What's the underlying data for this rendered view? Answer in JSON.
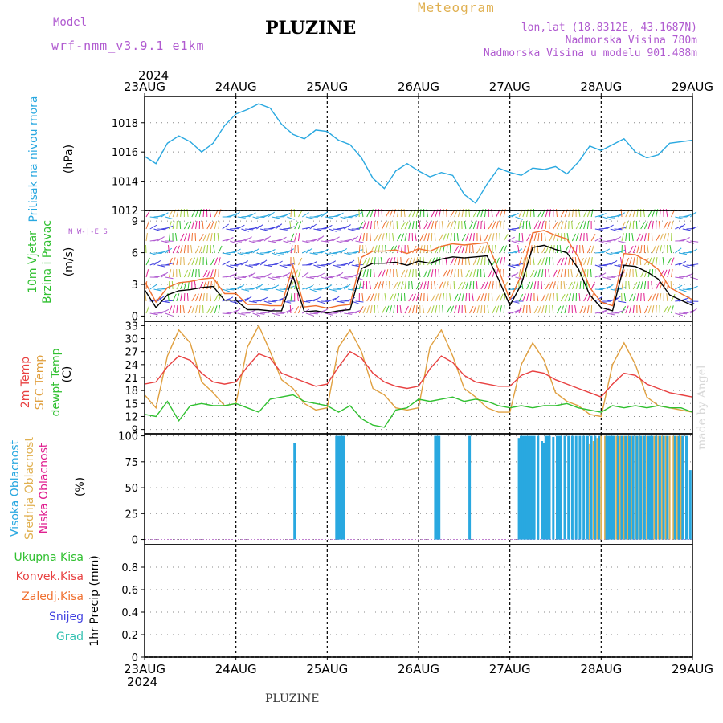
{
  "header": {
    "model_label": "Model",
    "model_name": "wrf-nmm_v3.9.1  e1km",
    "title": "PLUZINE",
    "meteogram": "Meteogram",
    "lonlat": "lon,lat (18.8312E, 43.1687N)",
    "altitude": "Nadmorska Visina 780m",
    "model_altitude": "Nadmorska Visina u modelu 901.488m"
  },
  "footer": {
    "name": "PLUZINE",
    "made_by": "made by Angel"
  },
  "time_axis": {
    "year": "2024",
    "labels": [
      "23AUG",
      "24AUG",
      "25AUG",
      "26AUG",
      "27AUG",
      "28AUG",
      "29AUG"
    ]
  },
  "panels": {
    "pressure": {
      "ylabel": "Pritisak na nivou mora",
      "unit": "(hPa)"
    },
    "wind": {
      "ylabel1": "10m Vjetar",
      "ylabel2": "Brzina i Pravac",
      "unit": "(m/s)",
      "compass": "N W-|-E S"
    },
    "temp": {
      "ylabel1": "2m Temp",
      "ylabel2": "SFC Temp",
      "ylabel3": "dewpt Temp",
      "unit": "(C)"
    },
    "cloud": {
      "ylabel1": "Visoka Oblacnost",
      "ylabel2": "Srednja Oblacnost",
      "ylabel3": "Niska Oblacnost",
      "unit": "(%)"
    },
    "precip": {
      "legend": [
        "Ukupna Kisa",
        "Konvek.Kisa",
        "Zaledj.Kisa",
        "Snijeg",
        "Grad"
      ],
      "unit": "1hr Precip (mm)"
    }
  },
  "colors": {
    "pressure": "#29a8e0",
    "t2m": "#e84040",
    "tsfc": "#e0a040",
    "dewpt": "#30c030",
    "high_cloud": "#29a8e0",
    "mid_cloud": "#e0b050",
    "low_cloud": "#e02090",
    "ukupna": "#30c030",
    "konvek": "#e84040",
    "zaledj": "#f07030",
    "snijeg": "#4040e0",
    "grad": "#30c0b0",
    "purple": "#b05ad0"
  },
  "chart_data": [
    {
      "type": "line",
      "name": "pressure",
      "x_hours": [
        0,
        3,
        6,
        9,
        12,
        15,
        18,
        21,
        24,
        27,
        30,
        33,
        36,
        39,
        42,
        45,
        48,
        51,
        54,
        57,
        60,
        63,
        66,
        69,
        72,
        75,
        78,
        81,
        84,
        87,
        90,
        93,
        96,
        99,
        102,
        105,
        108,
        111,
        114,
        117,
        120,
        123,
        126,
        129,
        132,
        135,
        138,
        141,
        144
      ],
      "values": [
        1015.7,
        1015.2,
        1016.6,
        1017.1,
        1016.7,
        1016.0,
        1016.6,
        1017.8,
        1018.6,
        1018.9,
        1019.3,
        1019.0,
        1017.9,
        1017.2,
        1016.9,
        1017.5,
        1017.4,
        1016.8,
        1016.5,
        1015.6,
        1014.2,
        1013.5,
        1014.7,
        1015.2,
        1014.7,
        1014.3,
        1014.6,
        1014.4,
        1013.1,
        1012.5,
        1013.8,
        1014.9,
        1014.6,
        1014.4,
        1014.9,
        1014.8,
        1015.0,
        1014.5,
        1015.3,
        1016.4,
        1016.1,
        1016.5,
        1016.9,
        1016.0,
        1015.6,
        1015.8,
        1016.6,
        1016.7,
        1016.8
      ],
      "yticks": [
        1012,
        1014,
        1016,
        1018
      ],
      "ylim": [
        1012,
        1019.8
      ]
    },
    {
      "type": "line",
      "name": "wind_speed",
      "x_hours": [
        0,
        3,
        6,
        9,
        12,
        15,
        18,
        21,
        24,
        27,
        30,
        33,
        36,
        39,
        42,
        45,
        48,
        51,
        54,
        57,
        60,
        63,
        66,
        69,
        72,
        75,
        78,
        81,
        84,
        87,
        90,
        93,
        96,
        99,
        102,
        105,
        108,
        111,
        114,
        117,
        120,
        123,
        126,
        129,
        132,
        135,
        138,
        141,
        144
      ],
      "values": [
        2.5,
        0.8,
        2.0,
        2.4,
        2.5,
        2.7,
        2.8,
        1.5,
        1.5,
        0.6,
        0.6,
        0.5,
        0.5,
        3.8,
        0.4,
        0.5,
        0.3,
        0.5,
        0.6,
        4.5,
        5.0,
        5.0,
        5.1,
        4.8,
        5.2,
        5.0,
        5.4,
        5.6,
        5.5,
        5.6,
        5.7,
        3.5,
        1.0,
        3.0,
        6.5,
        6.7,
        6.3,
        6.0,
        4.5,
        2.0,
        0.8,
        0.5,
        4.8,
        4.7,
        4.2,
        3.5,
        2.0,
        1.5,
        1.0
      ],
      "yticks": [
        0,
        3,
        6,
        9
      ],
      "ylim": [
        -0.5,
        10
      ]
    },
    {
      "type": "line",
      "name": "temperature",
      "x_hours": [
        0,
        3,
        6,
        9,
        12,
        15,
        18,
        21,
        24,
        27,
        30,
        33,
        36,
        39,
        42,
        45,
        48,
        51,
        54,
        57,
        60,
        63,
        66,
        69,
        72,
        75,
        78,
        81,
        84,
        87,
        90,
        93,
        96,
        99,
        102,
        105,
        108,
        111,
        114,
        117,
        120,
        123,
        126,
        129,
        132,
        135,
        138,
        141,
        144
      ],
      "series": [
        {
          "name": "2m Temp",
          "values": [
            19.5,
            20.0,
            23.5,
            26.0,
            25.0,
            22.0,
            20.0,
            19.5,
            20.0,
            23.5,
            26.5,
            25.5,
            22.0,
            21.0,
            20.0,
            19.0,
            19.5,
            23.5,
            27.0,
            25.5,
            22.0,
            20.0,
            19.0,
            18.5,
            19.0,
            23.0,
            26.0,
            24.5,
            21.5,
            20.0,
            19.5,
            19.0,
            19.0,
            21.5,
            22.5,
            22.0,
            20.5,
            19.5,
            18.5,
            17.5,
            16.5,
            19.5,
            22.0,
            21.5,
            19.5,
            18.5,
            17.5,
            17.0,
            16.5
          ]
        },
        {
          "name": "SFC Temp",
          "values": [
            17.0,
            14.0,
            26.0,
            32.0,
            29.0,
            20.0,
            17.5,
            14.5,
            15.0,
            28.0,
            33.0,
            27.0,
            20.5,
            18.5,
            15.0,
            13.5,
            14.0,
            28.0,
            32.0,
            27.0,
            18.5,
            17.0,
            14.0,
            13.5,
            14.0,
            28.0,
            32.0,
            26.0,
            18.5,
            16.5,
            14.0,
            13.0,
            13.0,
            24.0,
            29.0,
            25.0,
            17.5,
            15.5,
            14.5,
            12.5,
            12.0,
            24.0,
            29.0,
            24.0,
            16.5,
            14.5,
            14.0,
            13.5,
            13.0
          ]
        },
        {
          "name": "dewpt Temp",
          "values": [
            12.5,
            12.0,
            15.5,
            11.0,
            14.5,
            15.0,
            14.5,
            14.5,
            15.0,
            14.0,
            13.0,
            16.0,
            16.5,
            17.0,
            15.5,
            15.0,
            14.5,
            13.0,
            14.5,
            11.5,
            10.0,
            9.5,
            13.5,
            14.0,
            16.0,
            15.5,
            16.0,
            16.5,
            15.5,
            16.0,
            15.5,
            14.5,
            14.0,
            14.5,
            14.0,
            14.5,
            14.5,
            15.0,
            14.0,
            13.5,
            13.0,
            14.5,
            14.0,
            14.5,
            14.0,
            14.5,
            14.0,
            14.0,
            13.0
          ]
        }
      ],
      "yticks": [
        9,
        12,
        15,
        18,
        21,
        24,
        27,
        30,
        33
      ],
      "ylim": [
        8,
        34
      ]
    },
    {
      "type": "bar",
      "name": "cloud_cover",
      "series": [
        {
          "name": "Visoka Oblacnost",
          "hours": [
            39,
            50,
            50.5,
            51,
            51.5,
            52,
            76,
            76.5,
            77,
            85,
            98,
            98.5,
            99,
            99.5,
            100,
            100.5,
            101,
            101.5,
            102,
            103,
            104,
            104.5,
            105,
            105.5,
            106,
            107,
            108,
            108.5,
            109,
            110,
            111,
            112,
            113,
            114,
            115,
            116,
            117,
            118,
            119,
            121,
            121.5,
            122,
            122.5,
            123,
            124,
            125,
            126,
            127,
            128,
            129,
            130,
            131,
            132,
            132.5,
            133,
            134,
            135,
            136,
            137,
            139,
            140,
            141,
            142,
            143
          ],
          "values": [
            93,
            100,
            100,
            100,
            100,
            100,
            100,
            100,
            100,
            100,
            98,
            100,
            100,
            100,
            100,
            100,
            100,
            100,
            100,
            100,
            95,
            93,
            100,
            100,
            100,
            99,
            100,
            100,
            100,
            100,
            100,
            100,
            100,
            100,
            100,
            100,
            100,
            100,
            100,
            100,
            100,
            100,
            100,
            100,
            100,
            100,
            100,
            100,
            100,
            100,
            100,
            100,
            100,
            100,
            100,
            100,
            100,
            100,
            100,
            100,
            100,
            100,
            100,
            67
          ]
        },
        {
          "name": "Srednja Oblacnost",
          "hours": [
            117,
            118,
            119,
            120,
            121,
            122,
            123,
            124,
            125,
            126,
            127,
            128,
            129,
            130,
            131,
            132,
            133,
            134,
            135,
            136,
            137,
            138,
            139,
            140,
            141
          ],
          "values": [
            92,
            95,
            98,
            100,
            100,
            100,
            100,
            100,
            100,
            100,
            100,
            100,
            100,
            100,
            100,
            100,
            100,
            100,
            100,
            100,
            100,
            100,
            100,
            100,
            100
          ]
        },
        {
          "name": "Niska Oblacnost",
          "hours": [],
          "values": []
        }
      ],
      "yticks": [
        0,
        25,
        50,
        75,
        100
      ],
      "ylim": [
        -5,
        102
      ]
    },
    {
      "type": "line",
      "name": "precipitation",
      "yticks": [
        0,
        0.2,
        0.4,
        0.6,
        0.8
      ],
      "ylim": [
        0,
        1.0
      ],
      "series": [
        {
          "name": "Ukupna Kisa",
          "values": [
            0
          ]
        }
      ]
    }
  ]
}
